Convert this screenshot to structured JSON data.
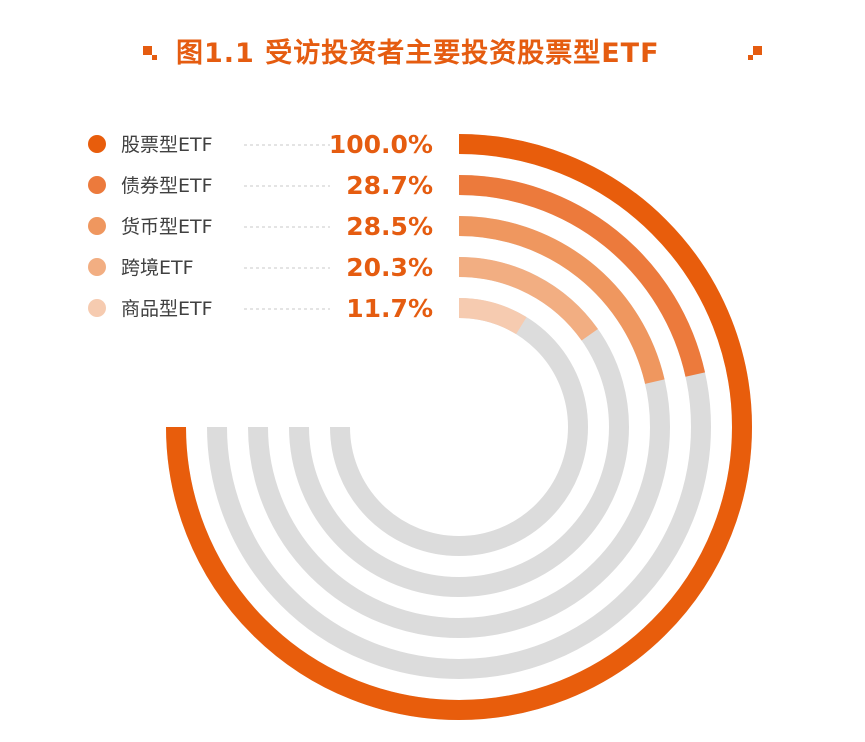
{
  "title": "图1.1  受访投资者主要投资股票型ETF",
  "colors": {
    "accent": "#e55c10",
    "track": "#dcdcdc",
    "series": [
      "#e85d0c",
      "#ec7a3c",
      "#ef975f",
      "#f2ae82",
      "#f6cbb0"
    ],
    "value_text": "#e55c10",
    "leader": "#c8c8c8"
  },
  "chart_data": {
    "type": "radial-bar",
    "title": "图1.1  受访投资者主要投资股票型ETF",
    "categories": [
      "股票型ETF",
      "债券型ETF",
      "货币型ETF",
      "跨境ETF",
      "商品型ETF"
    ],
    "values": [
      100.0,
      28.7,
      28.5,
      20.3,
      11.7
    ],
    "value_labels": [
      "100.0%",
      "28.7%",
      "28.5%",
      "20.3%",
      "11.7%"
    ],
    "unit": "%",
    "max_value": 100,
    "legend_position": "left"
  }
}
